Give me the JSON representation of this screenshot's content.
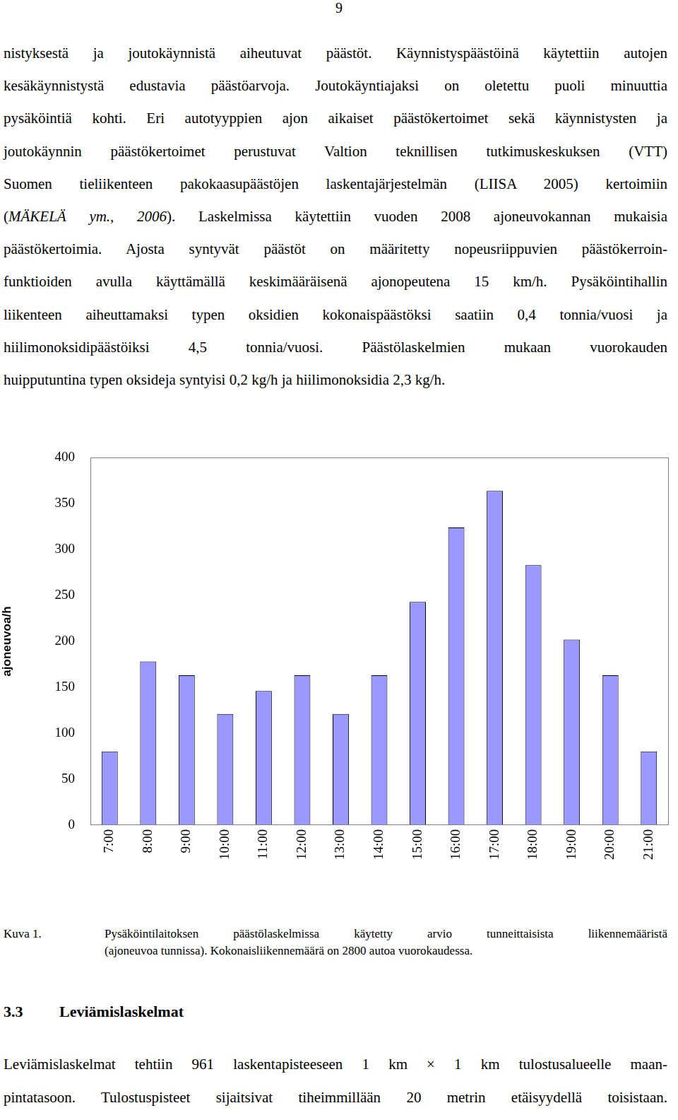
{
  "page_number": "9",
  "paragraph_1": {
    "lines": [
      "nistyksestä ja joutokäynnistä aiheutuvat päästöt. Käynnistyspäästöinä käytettiin autojen",
      "kesäkäynnistystä edustavia päästöarvoja. Joutokäyntiajaksi on oletettu puoli minuuttia",
      "pysäköintiä kohti. Eri autotyyppien ajon aikaiset päästökertoimet sekä käynnistysten ja",
      "joutokäynnin päästökertoimet perustuvat Valtion teknillisen tutkimuskeskuksen (VTT)",
      "Suomen tieliikenteen pakokaasupäästöjen laskentajärjestelmän (LIISA 2005) kertoimiin",
      [
        {
          "text": "("
        },
        {
          "text": "MÄKELÄ ym., 2006",
          "italic": true
        },
        {
          "text": "). Laskelmissa käytettiin vuoden 2008 ajoneuvokannan mukaisia"
        }
      ],
      "päästökertoimia. Ajosta syntyvät päästöt on määritetty nopeusriippuvien päästökerroin-",
      "funktioiden avulla käyttämällä keskimääräisenä ajonopeutena 15 km/h. Pysäköintihallin",
      "liikenteen aiheuttamaksi typen oksidien kokonaispäästöksi saatiin 0,4 tonnia/vuosi ja",
      "hiilimonoksidipäästöiksi 4,5 tonnia/vuosi. Päästölaskelmien mukaan vuorokauden",
      "huipputuntina typen oksideja syntyisi 0,2 kg/h ja hiilimonoksidia 2,3 kg/h."
    ]
  },
  "chart_data": {
    "type": "bar",
    "categories": [
      "7:00",
      "8:00",
      "9:00",
      "10:00",
      "11:00",
      "12:00",
      "13:00",
      "14:00",
      "15:00",
      "16:00",
      "17:00",
      "18:00",
      "19:00",
      "20:00",
      "21:00"
    ],
    "values": [
      80,
      178,
      163,
      121,
      146,
      163,
      121,
      163,
      243,
      324,
      364,
      283,
      202,
      163,
      80
    ],
    "color": "#9999ff",
    "y_label": "ajoneuvoa/h",
    "ylim": [
      0,
      400
    ],
    "yticks": [
      0,
      50,
      100,
      150,
      200,
      250,
      300,
      350,
      400
    ],
    "grid": false
  },
  "caption": {
    "label": "Kuva 1.",
    "lines": [
      "Pysäköintilaitoksen päästölaskelmissa käytetty arvio tunneittaisista liikennemääristä",
      "(ajoneuvoa tunnissa). Kokonaisliikennemäärä on 2800 autoa vuorokaudessa."
    ]
  },
  "section": {
    "number": "3.3",
    "title": "Leviämislaskelmat"
  },
  "paragraph_2": {
    "lines": [
      "Leviämislaskelmat tehtiin 961 laskentapisteeseen 1 km × 1 km tulostusalueelle maan-",
      "pintatasoon. Tulostuspisteet sijaitsivat tiheimmillään 20 metrin etäisyydellä toisistaan."
    ]
  }
}
